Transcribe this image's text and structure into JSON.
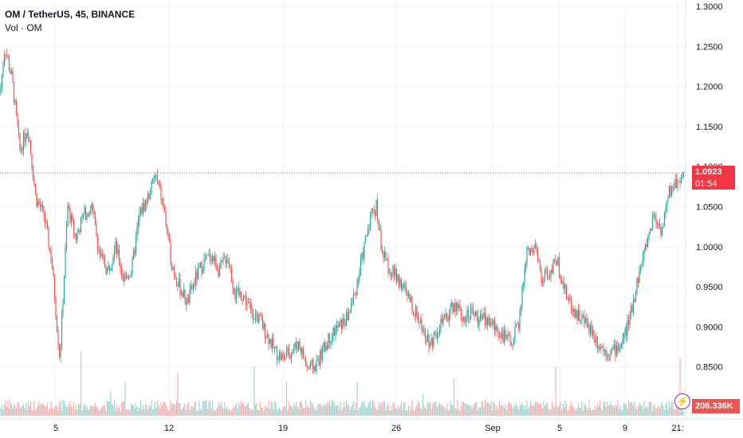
{
  "legend": {
    "title": "OM / TetherUS, 45, BINANCE",
    "volume_label": "Vol · OM"
  },
  "price_axis": {
    "ticks": [
      "1.3000",
      "1.2500",
      "1.2000",
      "1.1500",
      "1.1000",
      "1.0500",
      "1.0000",
      "0.9500",
      "0.9000",
      "0.8500"
    ]
  },
  "time_axis": {
    "labels": [
      "5",
      "12",
      "19",
      "26",
      "Sep",
      "5",
      "9",
      "21:"
    ]
  },
  "last_price": {
    "value": "1.0923",
    "countdown": "01:54"
  },
  "volume_value": "206.336K",
  "colors": {
    "up": "#26a69a",
    "down": "#ef5350",
    "last_price_line": "#f23645",
    "volume_icon": "#9c27b0"
  },
  "chart_data": {
    "type": "line",
    "ylim": [
      0.8,
      1.3
    ],
    "close_path": [
      [
        0,
        1.19
      ],
      [
        6,
        1.25
      ],
      [
        15,
        1.21
      ],
      [
        25,
        1.12
      ],
      [
        35,
        1.15
      ],
      [
        45,
        1.06
      ],
      [
        55,
        1.04
      ],
      [
        65,
        0.98
      ],
      [
        75,
        0.86
      ],
      [
        85,
        1.05
      ],
      [
        95,
        1.01
      ],
      [
        105,
        1.04
      ],
      [
        115,
        1.05
      ],
      [
        125,
        0.99
      ],
      [
        135,
        0.97
      ],
      [
        145,
        1.0
      ],
      [
        155,
        0.96
      ],
      [
        165,
        0.97
      ],
      [
        175,
        1.04
      ],
      [
        185,
        1.06
      ],
      [
        195,
        1.09
      ],
      [
        205,
        1.05
      ],
      [
        215,
        0.98
      ],
      [
        225,
        0.95
      ],
      [
        235,
        0.93
      ],
      [
        245,
        0.96
      ],
      [
        255,
        0.98
      ],
      [
        265,
        0.99
      ],
      [
        275,
        0.97
      ],
      [
        285,
        0.99
      ],
      [
        295,
        0.94
      ],
      [
        305,
        0.94
      ],
      [
        315,
        0.92
      ],
      [
        325,
        0.91
      ],
      [
        335,
        0.89
      ],
      [
        345,
        0.87
      ],
      [
        355,
        0.86
      ],
      [
        365,
        0.87
      ],
      [
        375,
        0.88
      ],
      [
        385,
        0.85
      ],
      [
        395,
        0.85
      ],
      [
        405,
        0.87
      ],
      [
        415,
        0.89
      ],
      [
        425,
        0.9
      ],
      [
        435,
        0.91
      ],
      [
        445,
        0.94
      ],
      [
        455,
        0.99
      ],
      [
        465,
        1.04
      ],
      [
        472,
        1.05
      ],
      [
        480,
        0.99
      ],
      [
        490,
        0.97
      ],
      [
        500,
        0.96
      ],
      [
        510,
        0.94
      ],
      [
        520,
        0.92
      ],
      [
        530,
        0.9
      ],
      [
        540,
        0.88
      ],
      [
        550,
        0.9
      ],
      [
        560,
        0.91
      ],
      [
        570,
        0.93
      ],
      [
        580,
        0.91
      ],
      [
        590,
        0.92
      ],
      [
        600,
        0.91
      ],
      [
        610,
        0.91
      ],
      [
        620,
        0.9
      ],
      [
        630,
        0.89
      ],
      [
        640,
        0.88
      ],
      [
        650,
        0.9
      ],
      [
        660,
        0.99
      ],
      [
        670,
        1.0
      ],
      [
        680,
        0.96
      ],
      [
        690,
        0.97
      ],
      [
        700,
        0.98
      ],
      [
        710,
        0.94
      ],
      [
        720,
        0.92
      ],
      [
        730,
        0.91
      ],
      [
        740,
        0.9
      ],
      [
        750,
        0.88
      ],
      [
        760,
        0.87
      ],
      [
        770,
        0.87
      ],
      [
        780,
        0.88
      ],
      [
        790,
        0.91
      ],
      [
        800,
        0.96
      ],
      [
        810,
        1.0
      ],
      [
        820,
        1.04
      ],
      [
        830,
        1.02
      ],
      [
        840,
        1.07
      ],
      [
        848,
        1.08
      ],
      [
        857,
        1.09
      ]
    ]
  }
}
